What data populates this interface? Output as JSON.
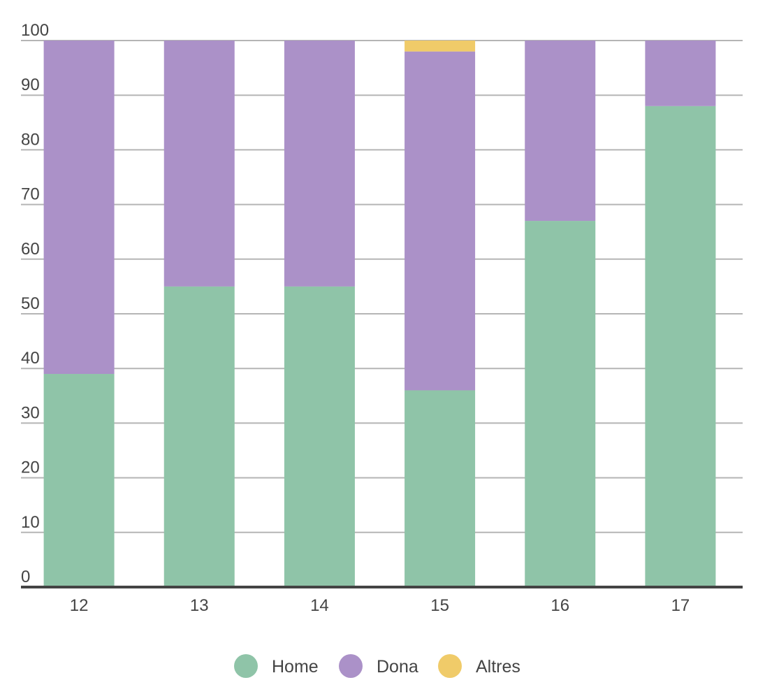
{
  "chart_data": {
    "type": "bar",
    "stacked": true,
    "categories": [
      "12",
      "13",
      "14",
      "15",
      "16",
      "17"
    ],
    "series": [
      {
        "name": "Home",
        "color": "#8fc4a8",
        "values": [
          39,
          55,
          55,
          36,
          67,
          88
        ]
      },
      {
        "name": "Dona",
        "color": "#ab91c8",
        "values": [
          61,
          45,
          45,
          62,
          33,
          12
        ]
      },
      {
        "name": "Altres",
        "color": "#f0cb69",
        "values": [
          0,
          0,
          0,
          2,
          0,
          0
        ]
      }
    ],
    "title": "",
    "xlabel": "",
    "ylabel": "",
    "ylim": [
      0,
      100
    ],
    "yticks": [
      0,
      10,
      20,
      30,
      40,
      50,
      60,
      70,
      80,
      90,
      100
    ],
    "grid": true,
    "legend_position": "bottom-center"
  }
}
